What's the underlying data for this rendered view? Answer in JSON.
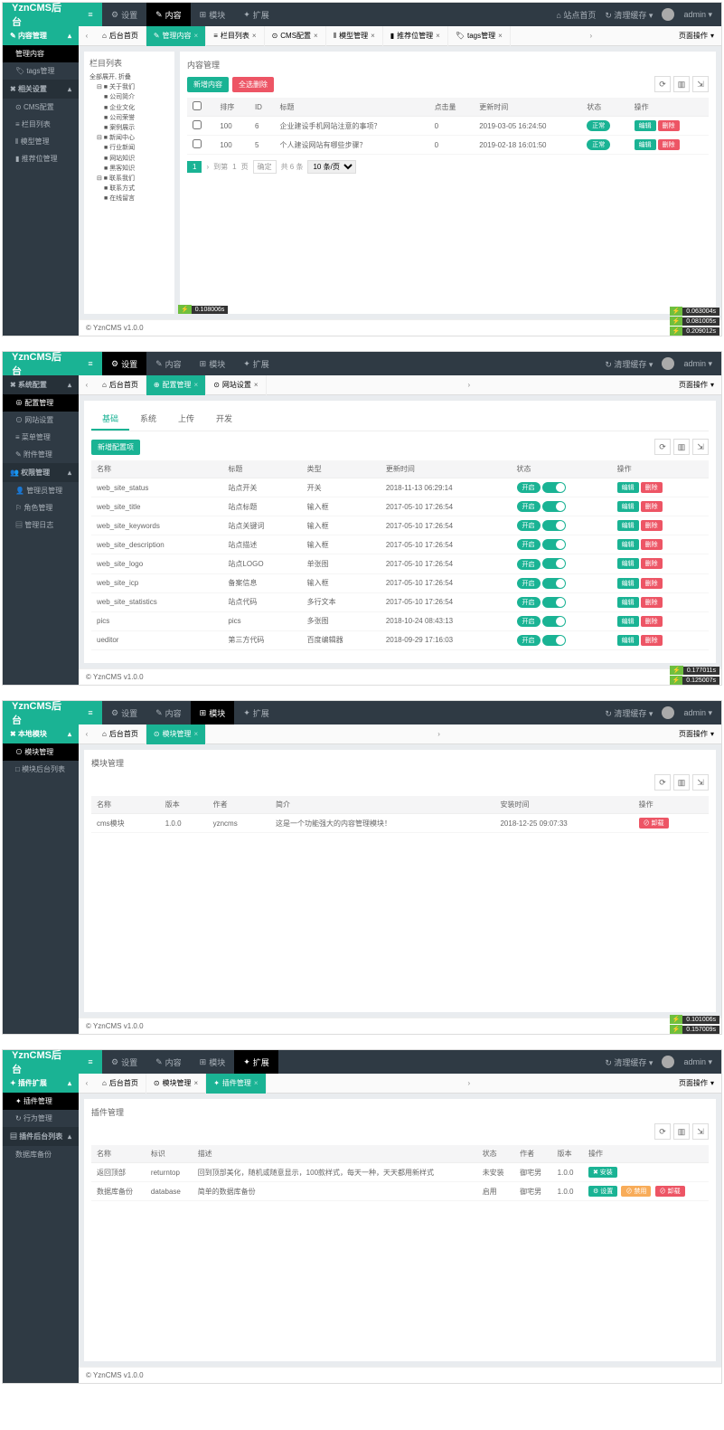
{
  "brand": "YznCMS后台",
  "topright": {
    "site": "站点首页",
    "clear": "清理缓存",
    "user": "admin"
  },
  "pageops": "页面操作",
  "footer": "© YznCMS v1.0.0",
  "perf": {
    "p1a": "0.108006s",
    "p1b": "0.063004s",
    "p1c": "0.081005s",
    "p1d": "0.209012s",
    "p2a": "0.177011s",
    "p2b": "0.125007s",
    "p3a": "0.101006s",
    "p3b": "0.157009s"
  },
  "nav": {
    "setting": "设置",
    "content": "内容",
    "module": "模块",
    "ext": "扩展"
  },
  "s1": {
    "g1": "内容管理",
    "g1a": "管理内容",
    "g1b": "tags管理",
    "g2": "相关设置",
    "g2a": "CMS配置",
    "g2b": "栏目列表",
    "g2c": "模型管理",
    "g2d": "推荐位管理"
  },
  "s2": {
    "g1": "系统配置",
    "g1a": "配置管理",
    "g1b": "网站设置",
    "g1c": "菜单管理",
    "g1d": "附件管理",
    "g2": "权限管理",
    "g2a": "管理员管理",
    "g2b": "角色管理",
    "g2c": "管理日志"
  },
  "s3": {
    "g1": "本地模块",
    "g1a": "模块管理",
    "g1b": "模块后台列表"
  },
  "s4": {
    "g1": "插件扩展",
    "g1a": "插件管理",
    "g1b": "行为管理",
    "g2": "插件后台列表",
    "g2a": "数据库备份"
  },
  "tabs1": {
    "home": "后台首页",
    "t1": "管理内容",
    "t2": "栏目列表",
    "t3": "CMS配置",
    "t4": "模型管理",
    "t5": "推荐位管理",
    "t6": "tags管理"
  },
  "tabs2": {
    "t1": "配置管理",
    "t2": "网站设置"
  },
  "tabs3": {
    "t1": "模块管理"
  },
  "tabs4": {
    "t1": "模块管理",
    "t2": "插件管理"
  },
  "p1": {
    "treeTitle": "栏目列表",
    "tree": {
      "root": "全部展开, 折叠",
      "n1": "关于我们",
      "n1a": "公司简介",
      "n1b": "企业文化",
      "n1c": "公司荣誉",
      "n1d": "案例展示",
      "n2": "新闻中心",
      "n2a": "行业新闻",
      "n2b": "网站知识",
      "n2c": "黑客知识",
      "n3": "联系我们",
      "n3a": "联系方式",
      "n3b": "在线留言"
    },
    "title": "内容管理",
    "btnNew": "新增内容",
    "btnDel": "全选删除",
    "cols": {
      "sort": "排序",
      "id": "ID",
      "title": "标题",
      "hits": "点击量",
      "time": "更新时间",
      "status": "状态",
      "ops": "操作"
    },
    "rows": [
      {
        "sort": "100",
        "id": "6",
        "title": "企业建设手机网站注意的事项？",
        "hits": "0",
        "time": "2019-03-05 16:24:50"
      },
      {
        "sort": "100",
        "id": "5",
        "title": "个人建设网站有哪些步骤？",
        "hits": "0",
        "time": "2019-02-18 16:01:50"
      }
    ],
    "status": "正常",
    "edit": "编辑",
    "del": "删除",
    "pager": {
      "jump": "到第",
      "page": "页",
      "ok": "确定",
      "total": "共 6 条",
      "per": "10 条/页"
    }
  },
  "p2": {
    "subtabs": {
      "a": "基础",
      "b": "系统",
      "c": "上传",
      "d": "开发"
    },
    "btnNew": "新增配置项",
    "cols": {
      "name": "名称",
      "title": "标题",
      "type": "类型",
      "time": "更新时间",
      "status": "状态",
      "ops": "操作"
    },
    "statusLabel": "开启",
    "edit": "编辑",
    "del": "删除",
    "rows": [
      {
        "name": "web_site_status",
        "title": "站点开关",
        "type": "开关",
        "time": "2018-11-13 06:29:14"
      },
      {
        "name": "web_site_title",
        "title": "站点标题",
        "type": "输入框",
        "time": "2017-05-10 17:26:54"
      },
      {
        "name": "web_site_keywords",
        "title": "站点关键词",
        "type": "输入框",
        "time": "2017-05-10 17:26:54"
      },
      {
        "name": "web_site_description",
        "title": "站点描述",
        "type": "输入框",
        "time": "2017-05-10 17:26:54"
      },
      {
        "name": "web_site_logo",
        "title": "站点LOGO",
        "type": "单张图",
        "time": "2017-05-10 17:26:54"
      },
      {
        "name": "web_site_icp",
        "title": "备案信息",
        "type": "输入框",
        "time": "2017-05-10 17:26:54"
      },
      {
        "name": "web_site_statistics",
        "title": "站点代码",
        "type": "多行文本",
        "time": "2017-05-10 17:26:54"
      },
      {
        "name": "pics",
        "title": "pics",
        "type": "多张图",
        "time": "2018-10-24 08:43:13"
      },
      {
        "name": "ueditor",
        "title": "第三方代码",
        "type": "百度编辑器",
        "time": "2018-09-29 17:16:03"
      }
    ]
  },
  "p3": {
    "title": "模块管理",
    "cols": {
      "name": "名称",
      "ver": "版本",
      "author": "作者",
      "desc": "简介",
      "time": "安装时间",
      "ops": "操作"
    },
    "rows": [
      {
        "name": "cms模块",
        "ver": "1.0.0",
        "author": "yzncms",
        "desc": "这是一个功能强大的内容管理模块！",
        "time": "2018-12-25 09:07:33"
      }
    ],
    "uninstall": "卸载"
  },
  "p4": {
    "title": "插件管理",
    "cols": {
      "name": "名称",
      "ident": "标识",
      "desc": "描述",
      "status": "状态",
      "author": "作者",
      "ver": "版本",
      "ops": "操作"
    },
    "rows": [
      {
        "name": "返回顶部",
        "ident": "returntop",
        "desc": "回到顶部美化，随机或随意显示，100款样式，每天一种，天天都用新样式",
        "status": "未安装",
        "author": "御宅男",
        "ver": "1.0.0",
        "install": "安装"
      },
      {
        "name": "数据库备份",
        "ident": "database",
        "desc": "简单的数据库备份",
        "status": "启用",
        "author": "御宅男",
        "ver": "1.0.0",
        "setting": "设置",
        "disable": "禁用",
        "uninstall": "卸载"
      }
    ]
  }
}
